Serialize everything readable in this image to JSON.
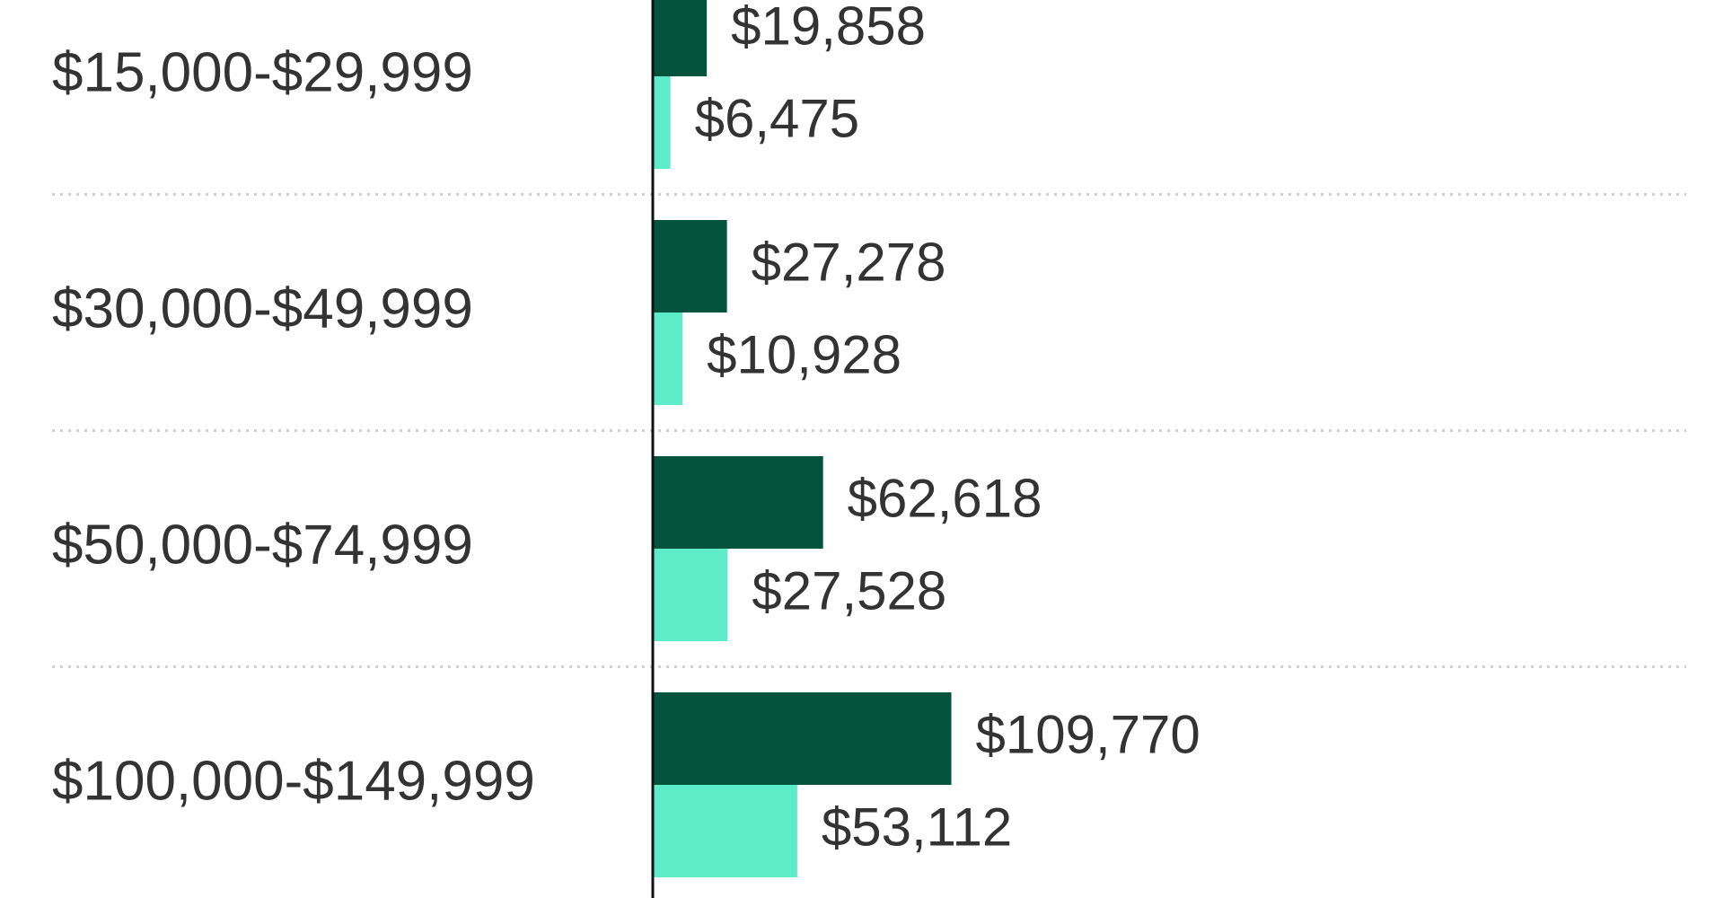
{
  "chart_data": {
    "type": "hbar",
    "categories": [
      "$15,000-$29,999",
      "$30,000-$49,999",
      "$50,000-$74,999",
      "$100,000-$149,999"
    ],
    "series": [
      {
        "color": "#03543c",
        "values": [
          19858,
          27278,
          62618,
          109770
        ],
        "value_labels": [
          "$19,858",
          "$27,278",
          "$62,618",
          "$109,770"
        ]
      },
      {
        "color": "#5eebc7",
        "values": [
          6475,
          10928,
          27528,
          53112
        ],
        "value_labels": [
          "$6,475",
          "$10,928",
          "$27,528",
          "$53,112"
        ]
      }
    ],
    "xlim": [
      0,
      380000
    ]
  }
}
